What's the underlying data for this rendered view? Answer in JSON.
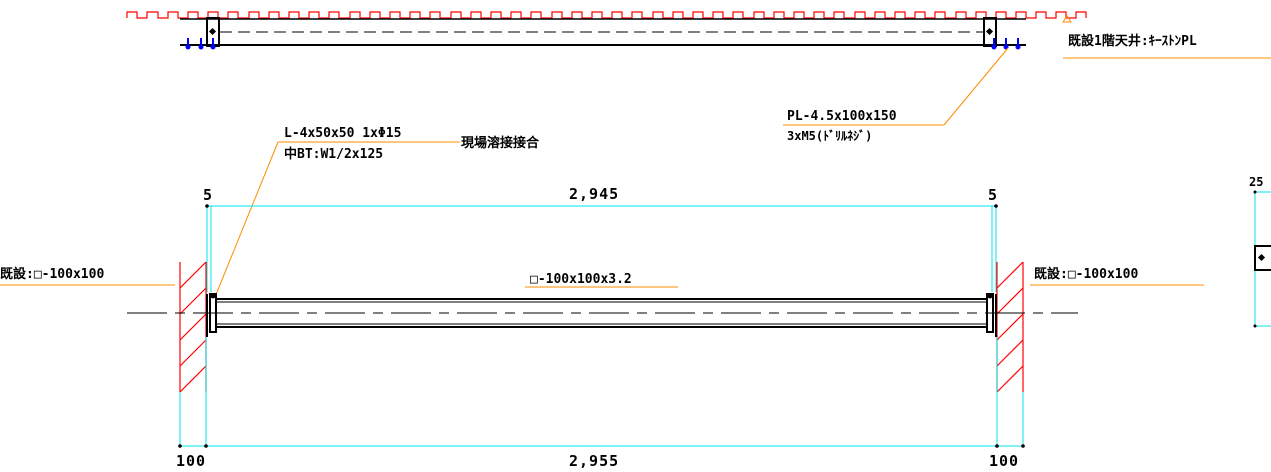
{
  "labels": {
    "ceiling": "既設1階天井:ｷｰｽﾄﾝPL",
    "plate_line1": "PL-4.5x100x150",
    "plate_line2": "3xM5(ﾄﾞﾘﾙﾈｼﾞ)",
    "angle_line1": "L-4x50x50 1xΦ15",
    "angle_line2": "中BT:W1/2x125",
    "weld": "現場溶接接合",
    "existing_left": "既設:□-100x100",
    "existing_right": "既設:□-100x100",
    "member": "□-100x100x3.2"
  },
  "dimensions": {
    "top_left": "5",
    "top_center": "2,945",
    "top_right": "5",
    "bottom_left": "100",
    "bottom_center": "2,955",
    "bottom_right": "100",
    "side_fragment": "25"
  },
  "colors": {
    "orange_leader": "#ff8c00",
    "cyan_dimension": "#00e5ee",
    "red_hatch": "#ff0000",
    "blue_bolt": "#0000ff",
    "black_line": "#000000"
  }
}
